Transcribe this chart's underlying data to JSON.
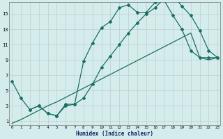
{
  "xlabel": "Humidex (Indice chaleur)",
  "bg_color": "#d5ecec",
  "line_color": "#1a7060",
  "xlim": [
    -0.3,
    23.3
  ],
  "ylim": [
    0.5,
    16.5
  ],
  "xticks": [
    0,
    1,
    2,
    3,
    4,
    5,
    6,
    7,
    8,
    9,
    10,
    11,
    12,
    13,
    14,
    15,
    16,
    17,
    18,
    19,
    20,
    21,
    22,
    23
  ],
  "yticks": [
    1,
    3,
    5,
    7,
    9,
    11,
    13,
    15
  ],
  "series1_x": [
    0,
    1,
    2,
    3,
    4,
    5,
    6,
    7,
    8,
    9,
    10,
    11,
    12,
    13,
    14,
    15,
    16,
    17,
    18,
    19,
    20,
    21,
    22,
    23
  ],
  "series1_y": [
    6.2,
    4.0,
    2.5,
    3.0,
    2.0,
    1.7,
    3.0,
    3.2,
    8.8,
    11.2,
    13.2,
    14.0,
    15.8,
    16.2,
    15.2,
    15.2,
    16.5,
    16.8,
    14.8,
    13.0,
    10.2,
    9.3,
    9.3,
    9.3
  ],
  "series2_x": [
    0,
    1,
    2,
    3,
    4,
    5,
    6,
    7,
    8,
    9,
    10,
    11,
    12,
    13,
    14,
    15,
    16,
    17,
    18,
    19,
    20,
    21,
    22,
    23
  ],
  "series2_y": [
    0.7,
    1.2,
    1.8,
    2.4,
    3.0,
    3.5,
    4.1,
    4.7,
    5.3,
    5.9,
    6.5,
    7.1,
    7.7,
    8.3,
    8.9,
    9.5,
    10.1,
    10.7,
    11.3,
    11.9,
    12.5,
    9.3,
    9.0,
    9.3
  ],
  "series3_x": [
    2,
    3,
    4,
    5,
    6,
    7,
    8,
    9,
    10,
    11,
    12,
    13,
    14,
    15,
    16,
    17,
    18,
    19,
    20,
    21,
    22,
    23
  ],
  "series3_y": [
    2.5,
    3.0,
    2.0,
    1.7,
    3.2,
    3.2,
    4.0,
    5.8,
    8.0,
    9.5,
    11.0,
    12.5,
    13.8,
    15.0,
    15.8,
    17.0,
    17.5,
    16.0,
    14.8,
    12.8,
    10.2,
    9.3
  ]
}
